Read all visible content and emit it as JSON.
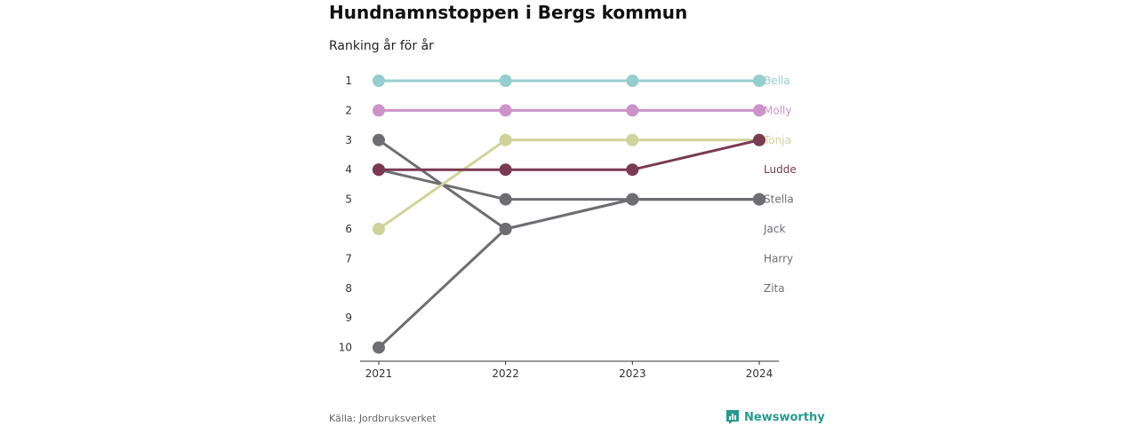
{
  "header": {
    "title": "Hundnamnstoppen i Bergs kommun",
    "subtitle": "Ranking år för år"
  },
  "footer": {
    "source": "Källa: Jordbruksverket",
    "brand": "Newsworthy",
    "brand_icon": "bar-chart-logo-icon"
  },
  "colors": {
    "Bella": "#96cdcf",
    "Molly": "#cc93c9",
    "Tonja": "#cfd29b",
    "Ludde": "#7a3a52",
    "Stella": "#6e6d72",
    "Jack": "#6e6d72",
    "Harry": "#6e6d72",
    "Zita": "#6e6d72",
    "brand": "#2a9a8f"
  },
  "chart_data": {
    "type": "line",
    "title": "Hundnamnstoppen i Bergs kommun",
    "subtitle": "Ranking år för år",
    "x": [
      "2021",
      "2022",
      "2023",
      "2024"
    ],
    "y_ticks": [
      "1",
      "2",
      "3",
      "4",
      "5",
      "6",
      "7",
      "8",
      "9",
      "10"
    ],
    "ylim": [
      1,
      10
    ],
    "y_inverted": true,
    "series": [
      {
        "name": "Bella",
        "values": [
          1,
          1,
          1,
          1
        ]
      },
      {
        "name": "Molly",
        "values": [
          2,
          2,
          2,
          2
        ]
      },
      {
        "name": "Stella",
        "values": [
          4,
          5,
          5,
          5
        ]
      },
      {
        "name": "Jack",
        "values": [
          3,
          6,
          5,
          5
        ]
      },
      {
        "name": "Harry",
        "values": [
          10,
          6,
          5,
          5
        ]
      },
      {
        "name": "Zita",
        "values": [
          null,
          null,
          null,
          null
        ]
      },
      {
        "name": "Tonja",
        "values": [
          6,
          3,
          3,
          3
        ]
      },
      {
        "name": "Ludde",
        "values": [
          4,
          4,
          4,
          3
        ]
      }
    ],
    "end_labels": [
      {
        "name": "Bella",
        "rank": 1
      },
      {
        "name": "Molly",
        "rank": 2
      },
      {
        "name": "Tonja",
        "rank": 3
      },
      {
        "name": "Ludde",
        "rank": 4
      },
      {
        "name": "Stella",
        "rank": 5
      },
      {
        "name": "Jack",
        "rank": 6
      },
      {
        "name": "Harry",
        "rank": 7
      },
      {
        "name": "Zita",
        "rank": 8
      }
    ],
    "grid": false
  }
}
